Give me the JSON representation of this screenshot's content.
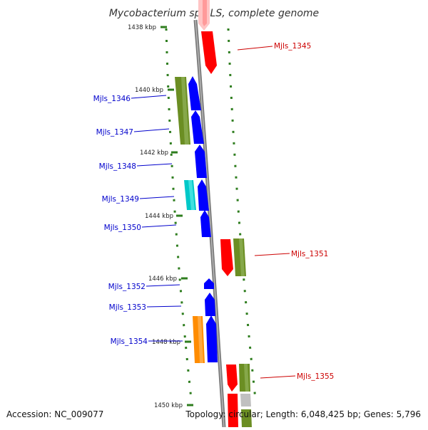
{
  "title": "Mycobacterium sp. JLS, complete genome",
  "footer": {
    "accession": "Accession: NC_009077",
    "summary": "Topology: circular; Length: 6,048,425 bp; Genes: 5,796"
  },
  "colors": {
    "backbone": "#8c8c8c",
    "tick": "#2e7d1e",
    "label_blue": "#0000cc",
    "label_red": "#cc0000",
    "gene_blue": "#0000ff",
    "gene_red": "#ff0000",
    "gene_green": "#6b8e23",
    "gene_cyan": "#00c8c8",
    "gene_orange": "#ff8c00",
    "gene_grey": "#c0c0c0"
  },
  "scale_labels": [
    "1438 kbp",
    "1440 kbp",
    "1442 kbp",
    "1444 kbp",
    "1446 kbp",
    "1448 kbp",
    "1450 kbp"
  ],
  "gene_labels": {
    "left": [
      "Mjls_1346",
      "Mjls_1347",
      "Mjls_1348",
      "Mjls_1349",
      "Mjls_1350",
      "Mjls_1352",
      "Mjls_1353",
      "Mjls_1354"
    ],
    "right": [
      "Mjls_1345",
      "Mjls_1351",
      "Mjls_1355"
    ]
  }
}
